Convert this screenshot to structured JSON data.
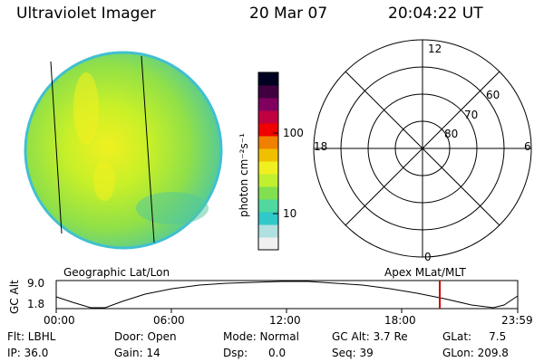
{
  "header": {
    "instrument": "Ultraviolet Imager",
    "date": "20 Mar 07",
    "time": "20:04:22 UT"
  },
  "colorbar": {
    "unit_label": "photon cm⁻²s⁻¹",
    "ticks": [
      "100",
      "10"
    ],
    "colors": [
      "#f0f0f0",
      "#b0e0e0",
      "#30c8c8",
      "#50d8a0",
      "#80e050",
      "#c0f030",
      "#f0f020",
      "#f0c000",
      "#f08000",
      "#f00000",
      "#c00040",
      "#800060",
      "#400040",
      "#000020"
    ]
  },
  "image_panel": {
    "caption": "Geographic Lat/Lon"
  },
  "polar_panel": {
    "caption": "Apex MLat/MLT",
    "mlt_labels": {
      "top": "12",
      "left": "18",
      "right": "6",
      "bottom": "0"
    },
    "mlat_labels": [
      "60",
      "70",
      "80"
    ]
  },
  "altitude_plot": {
    "axis_title": "GC Alt",
    "y_ticks": [
      "9.0",
      "1.8"
    ],
    "x_ticks": [
      "00:00",
      "06:00",
      "12:00",
      "18:00",
      "23:59"
    ],
    "marker_color": "#cc0000"
  },
  "footer": {
    "col1": [
      "Flt: LBHL",
      "IP: 36.0"
    ],
    "col2": [
      "Door: Open",
      "Gain: 14"
    ],
    "col3": [
      "Mode: Normal",
      "Dsp:      0.0"
    ],
    "col4": [
      "GC Alt: 3.7 Re",
      "Seq: 39"
    ],
    "col5": [
      "GLat:     7.5",
      "GLon: 209.8"
    ]
  }
}
